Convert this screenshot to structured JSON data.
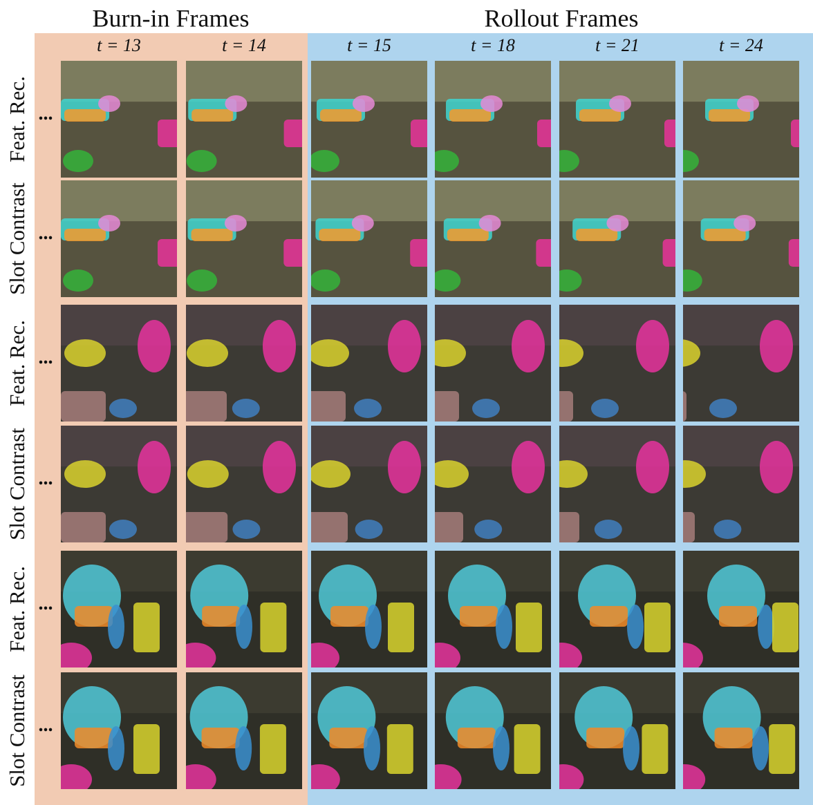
{
  "header": {
    "burn_in": "Burn-in Frames",
    "rollout": "Rollout Frames"
  },
  "columns": [
    "t = 13",
    "t = 14",
    "t = 15",
    "t = 18",
    "t = 21",
    "t = 24"
  ],
  "rows": [
    {
      "label": "Feat. Rec.",
      "ellipsis": "..."
    },
    {
      "label": "Slot Contrast",
      "ellipsis": "..."
    },
    {
      "label": "Feat. Rec.",
      "ellipsis": "..."
    },
    {
      "label": "Slot Contrast",
      "ellipsis": "..."
    },
    {
      "label": "Feat. Rec.",
      "ellipsis": "..."
    },
    {
      "label": "Slot Contrast",
      "ellipsis": "..."
    }
  ]
}
